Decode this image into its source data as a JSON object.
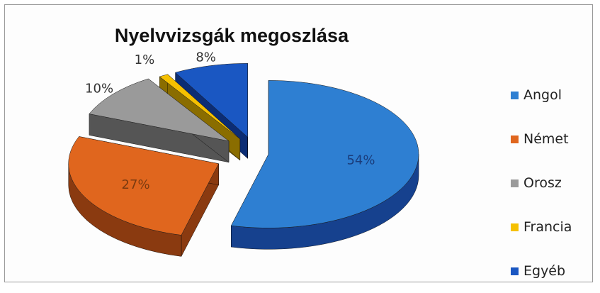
{
  "chart_data": {
    "type": "pie",
    "title": "Nyelvvizsgák megoszlása",
    "legend_position": "right",
    "categories": [
      "Angol",
      "Német",
      "Orosz",
      "Francia",
      "Egyéb"
    ],
    "values": [
      54,
      27,
      10,
      1,
      8
    ],
    "labels": [
      "54%",
      "27%",
      "10%",
      "1%",
      "8%"
    ],
    "colors": [
      "#2e7fd2",
      "#e0661e",
      "#9a9a9a",
      "#f5c000",
      "#1a57c2"
    ],
    "dark_colors": [
      "#16418e",
      "#8a3a10",
      "#555555",
      "#8a6d00",
      "#0c2d74"
    ],
    "exploded": true,
    "three_d": true
  }
}
